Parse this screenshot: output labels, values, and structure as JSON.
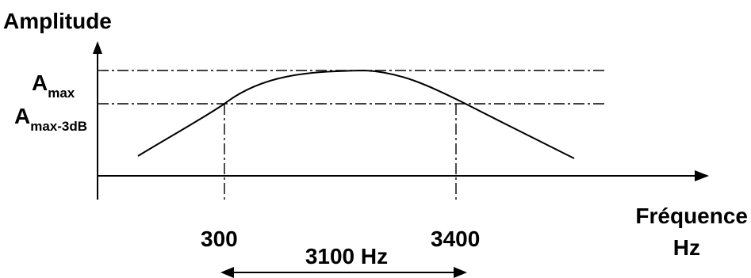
{
  "diagram": {
    "y_axis_label": "Amplitude",
    "x_axis_label_line1": "Fréquence",
    "x_axis_label_line2": "Hz",
    "a_max": {
      "main": "A",
      "sub": "max"
    },
    "a_max_3db": {
      "main": "A",
      "sub": "max-3dB"
    },
    "freq_low": "300",
    "freq_high": "3400",
    "bandwidth": "3100 Hz"
  }
}
